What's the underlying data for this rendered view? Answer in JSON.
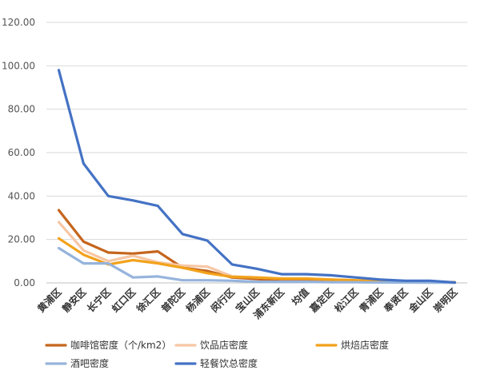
{
  "chart_data": {
    "type": "line",
    "categories": [
      "黄浦区",
      "静安区",
      "长宁区",
      "虹口区",
      "徐汇区",
      "普陀区",
      "杨浦区",
      "闵行区",
      "宝山区",
      "浦东新区",
      "均值",
      "嘉定区",
      "松江区",
      "青浦区",
      "奉贤区",
      "金山区",
      "崇明区"
    ],
    "ylim": [
      0,
      120
    ],
    "yticks": [
      0,
      20,
      40,
      60,
      80,
      100,
      120
    ],
    "ytick_labels": [
      "0.00",
      "20.00",
      "40.00",
      "60.00",
      "80.00",
      "100.00",
      "120.00"
    ],
    "grid": true,
    "legend_position": "bottom",
    "series": [
      {
        "name": "咖啡馆密度（个/km2）",
        "color": "#c5651c",
        "values": [
          33.5,
          19.0,
          14.0,
          13.5,
          14.5,
          7.0,
          5.5,
          2.5,
          1.8,
          1.2,
          1.5,
          1.0,
          0.8,
          0.5,
          0.4,
          0.3,
          0.2
        ]
      },
      {
        "name": "饮品店密度",
        "color": "#f7c7a4",
        "values": [
          28.0,
          15.0,
          10.0,
          12.5,
          9.5,
          8.0,
          7.5,
          3.0,
          2.5,
          2.0,
          2.0,
          1.5,
          1.2,
          0.8,
          0.6,
          0.5,
          0.3
        ]
      },
      {
        "name": "烘焙店密度",
        "color": "#f2a21b",
        "values": [
          20.5,
          13.0,
          8.5,
          10.5,
          9.0,
          7.0,
          4.5,
          2.8,
          2.5,
          2.0,
          2.0,
          1.5,
          1.2,
          0.8,
          0.6,
          0.5,
          0.3
        ]
      },
      {
        "name": "酒吧密度",
        "color": "#96b4dc",
        "values": [
          16.0,
          9.0,
          9.0,
          2.5,
          3.0,
          1.2,
          1.2,
          1.0,
          0.5,
          0.5,
          0.5,
          0.3,
          0.3,
          0.2,
          0.2,
          0.1,
          0.1
        ]
      },
      {
        "name": "轻餐饮总密度",
        "color": "#4472c4",
        "values": [
          98.0,
          55.0,
          40.0,
          38.0,
          35.5,
          22.5,
          19.5,
          8.5,
          6.5,
          4.0,
          4.0,
          3.5,
          2.5,
          1.5,
          1.0,
          1.0,
          0.2
        ]
      }
    ]
  }
}
